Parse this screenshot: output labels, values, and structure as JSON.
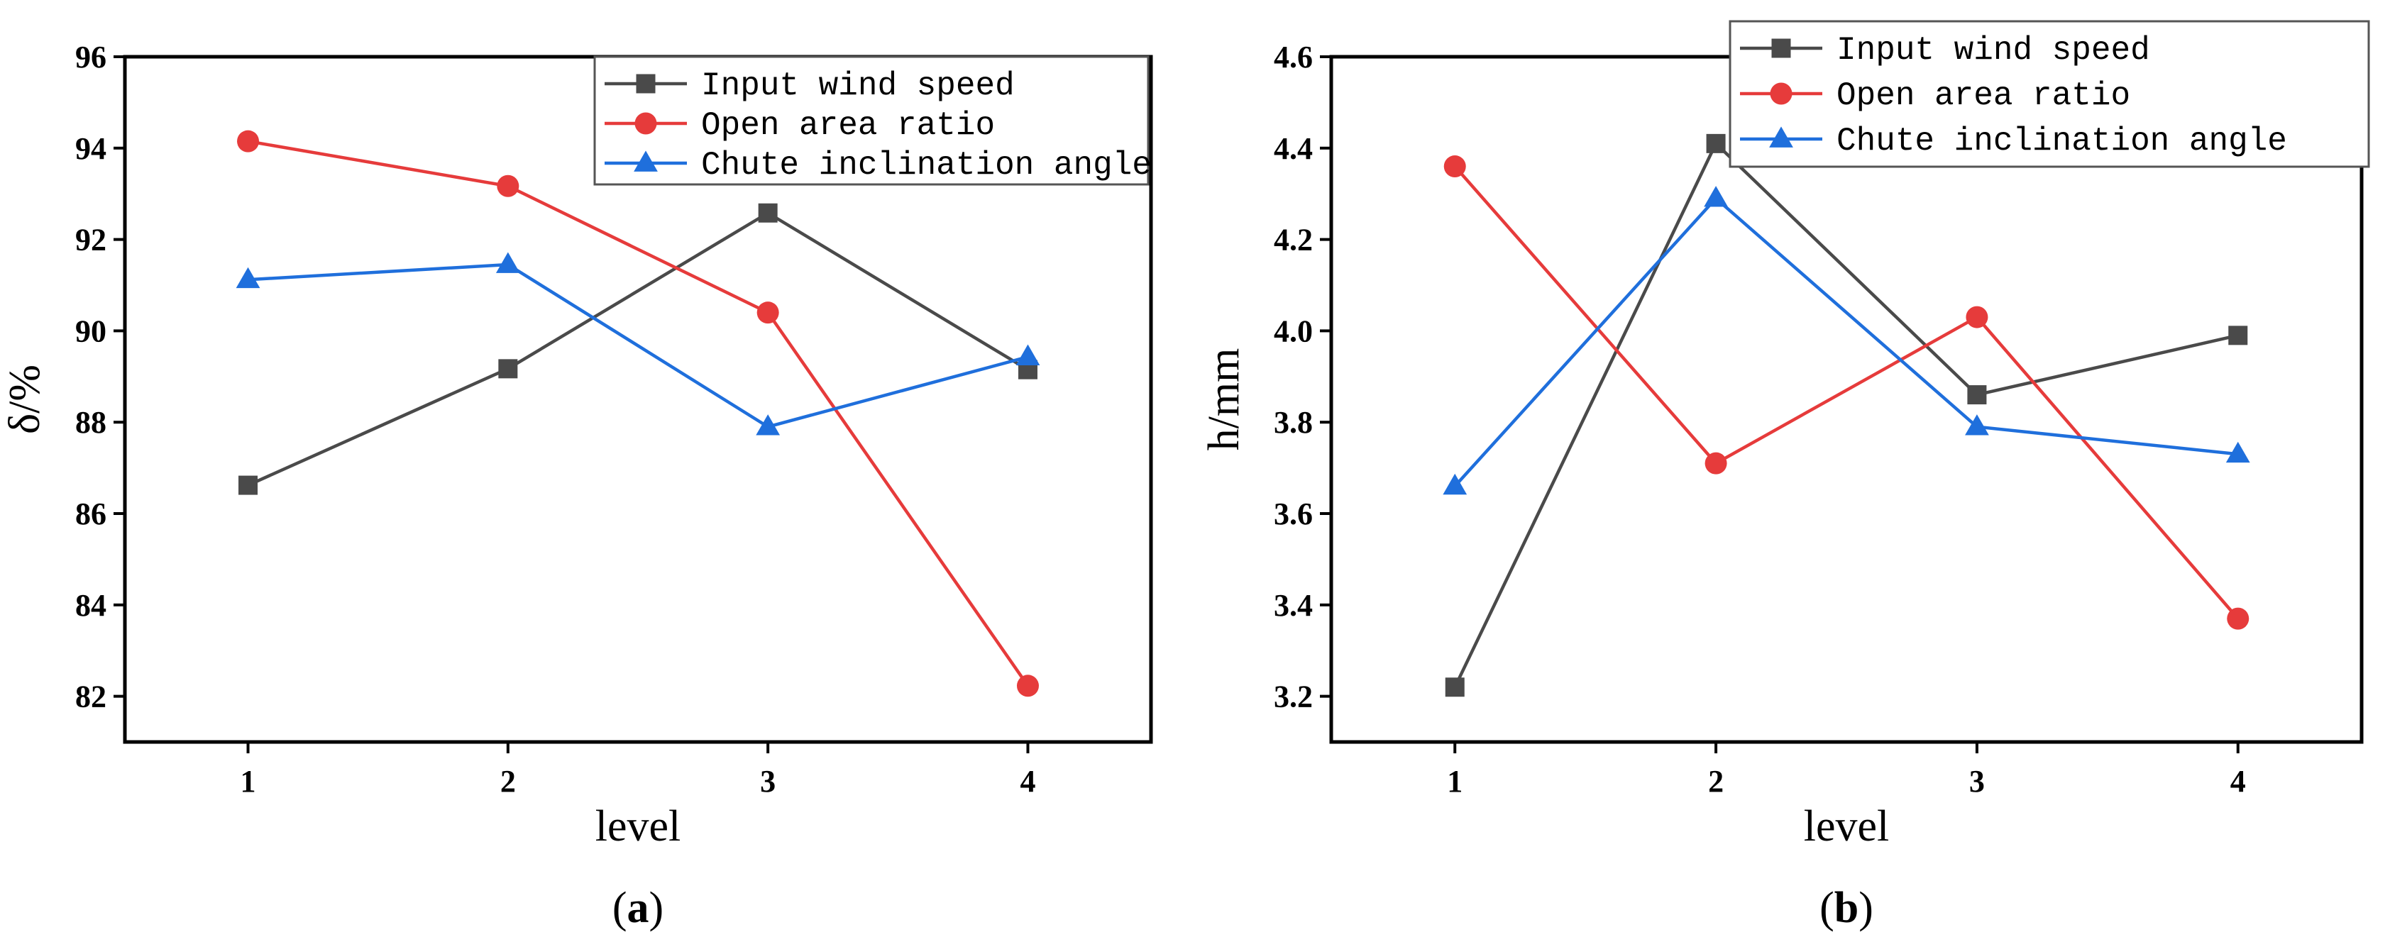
{
  "colors": {
    "input_wind_speed": "#4a4a4a",
    "open_area_ratio": "#e63b3b",
    "chute_inclination_angle": "#1f6fdc"
  },
  "chart_data": [
    {
      "type": "line",
      "panel": "(a)",
      "panel_letter": "a",
      "xlabel": "level",
      "ylabel": "δ/%",
      "categories": [
        1,
        2,
        3,
        4
      ],
      "ylim": [
        81,
        96
      ],
      "yticks": [
        82,
        84,
        86,
        88,
        90,
        92,
        94,
        96
      ],
      "legend_position": "top-right",
      "series": [
        {
          "name": "Input wind speed",
          "marker": "square",
          "color_key": "input_wind_speed",
          "values": [
            86.62,
            89.17,
            92.58,
            89.15
          ]
        },
        {
          "name": "Open area ratio",
          "marker": "circle",
          "color_key": "open_area_ratio",
          "values": [
            94.15,
            93.17,
            90.4,
            82.23
          ]
        },
        {
          "name": "Chute inclination angle",
          "marker": "triangle",
          "color_key": "chute_inclination_angle",
          "values": [
            91.12,
            91.45,
            87.9,
            89.43
          ]
        }
      ]
    },
    {
      "type": "line",
      "panel": "(b)",
      "panel_letter": "b",
      "xlabel": "level",
      "ylabel": "h/mm",
      "categories": [
        1,
        2,
        3,
        4
      ],
      "ylim": [
        3.1,
        4.6
      ],
      "yticks": [
        3.2,
        3.4,
        3.6,
        3.8,
        4.0,
        4.2,
        4.4,
        4.6
      ],
      "legend_position": "top-right",
      "series": [
        {
          "name": "Input wind speed",
          "marker": "square",
          "color_key": "input_wind_speed",
          "values": [
            3.22,
            4.41,
            3.86,
            3.99
          ]
        },
        {
          "name": "Open area ratio",
          "marker": "circle",
          "color_key": "open_area_ratio",
          "values": [
            4.36,
            3.71,
            4.03,
            3.37
          ]
        },
        {
          "name": "Chute inclination angle",
          "marker": "triangle",
          "color_key": "chute_inclination_angle",
          "values": [
            3.66,
            4.29,
            3.79,
            3.73
          ]
        }
      ]
    }
  ]
}
